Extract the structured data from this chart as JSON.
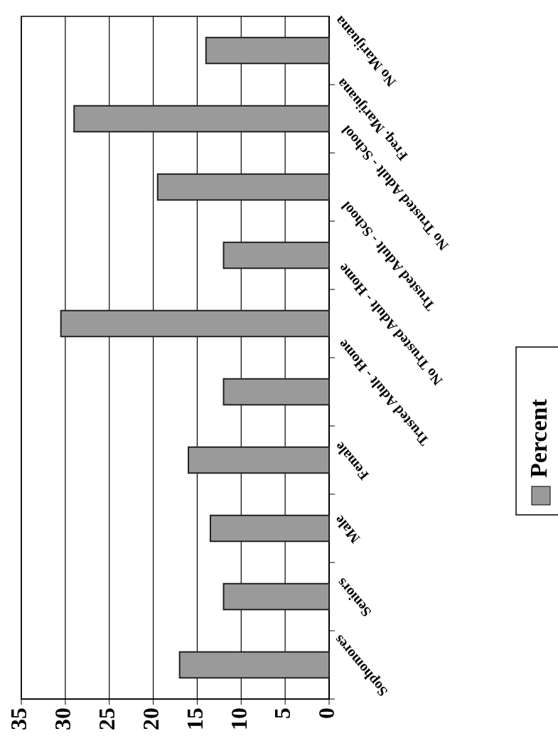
{
  "chart_data": {
    "type": "bar",
    "orientation": "horizontal",
    "categories": [
      "No Marijuana",
      "Freq. Marijuana",
      "No Trusted Adult - School",
      "Trusted Adult - School",
      "No Trusted Adult - Home",
      "Trusted Adult - Home",
      "Female",
      "Male",
      "Seniors",
      "Sophomores"
    ],
    "series": [
      {
        "name": "Percent",
        "color": "#9a9a9a",
        "values": [
          14,
          29,
          19.5,
          12,
          30.5,
          12,
          16,
          13.5,
          12,
          17
        ]
      }
    ],
    "xlim": [
      35,
      0
    ],
    "xticks": [
      0,
      5,
      10,
      15,
      20,
      25,
      30,
      35
    ],
    "grid": "x",
    "legend": "right"
  }
}
